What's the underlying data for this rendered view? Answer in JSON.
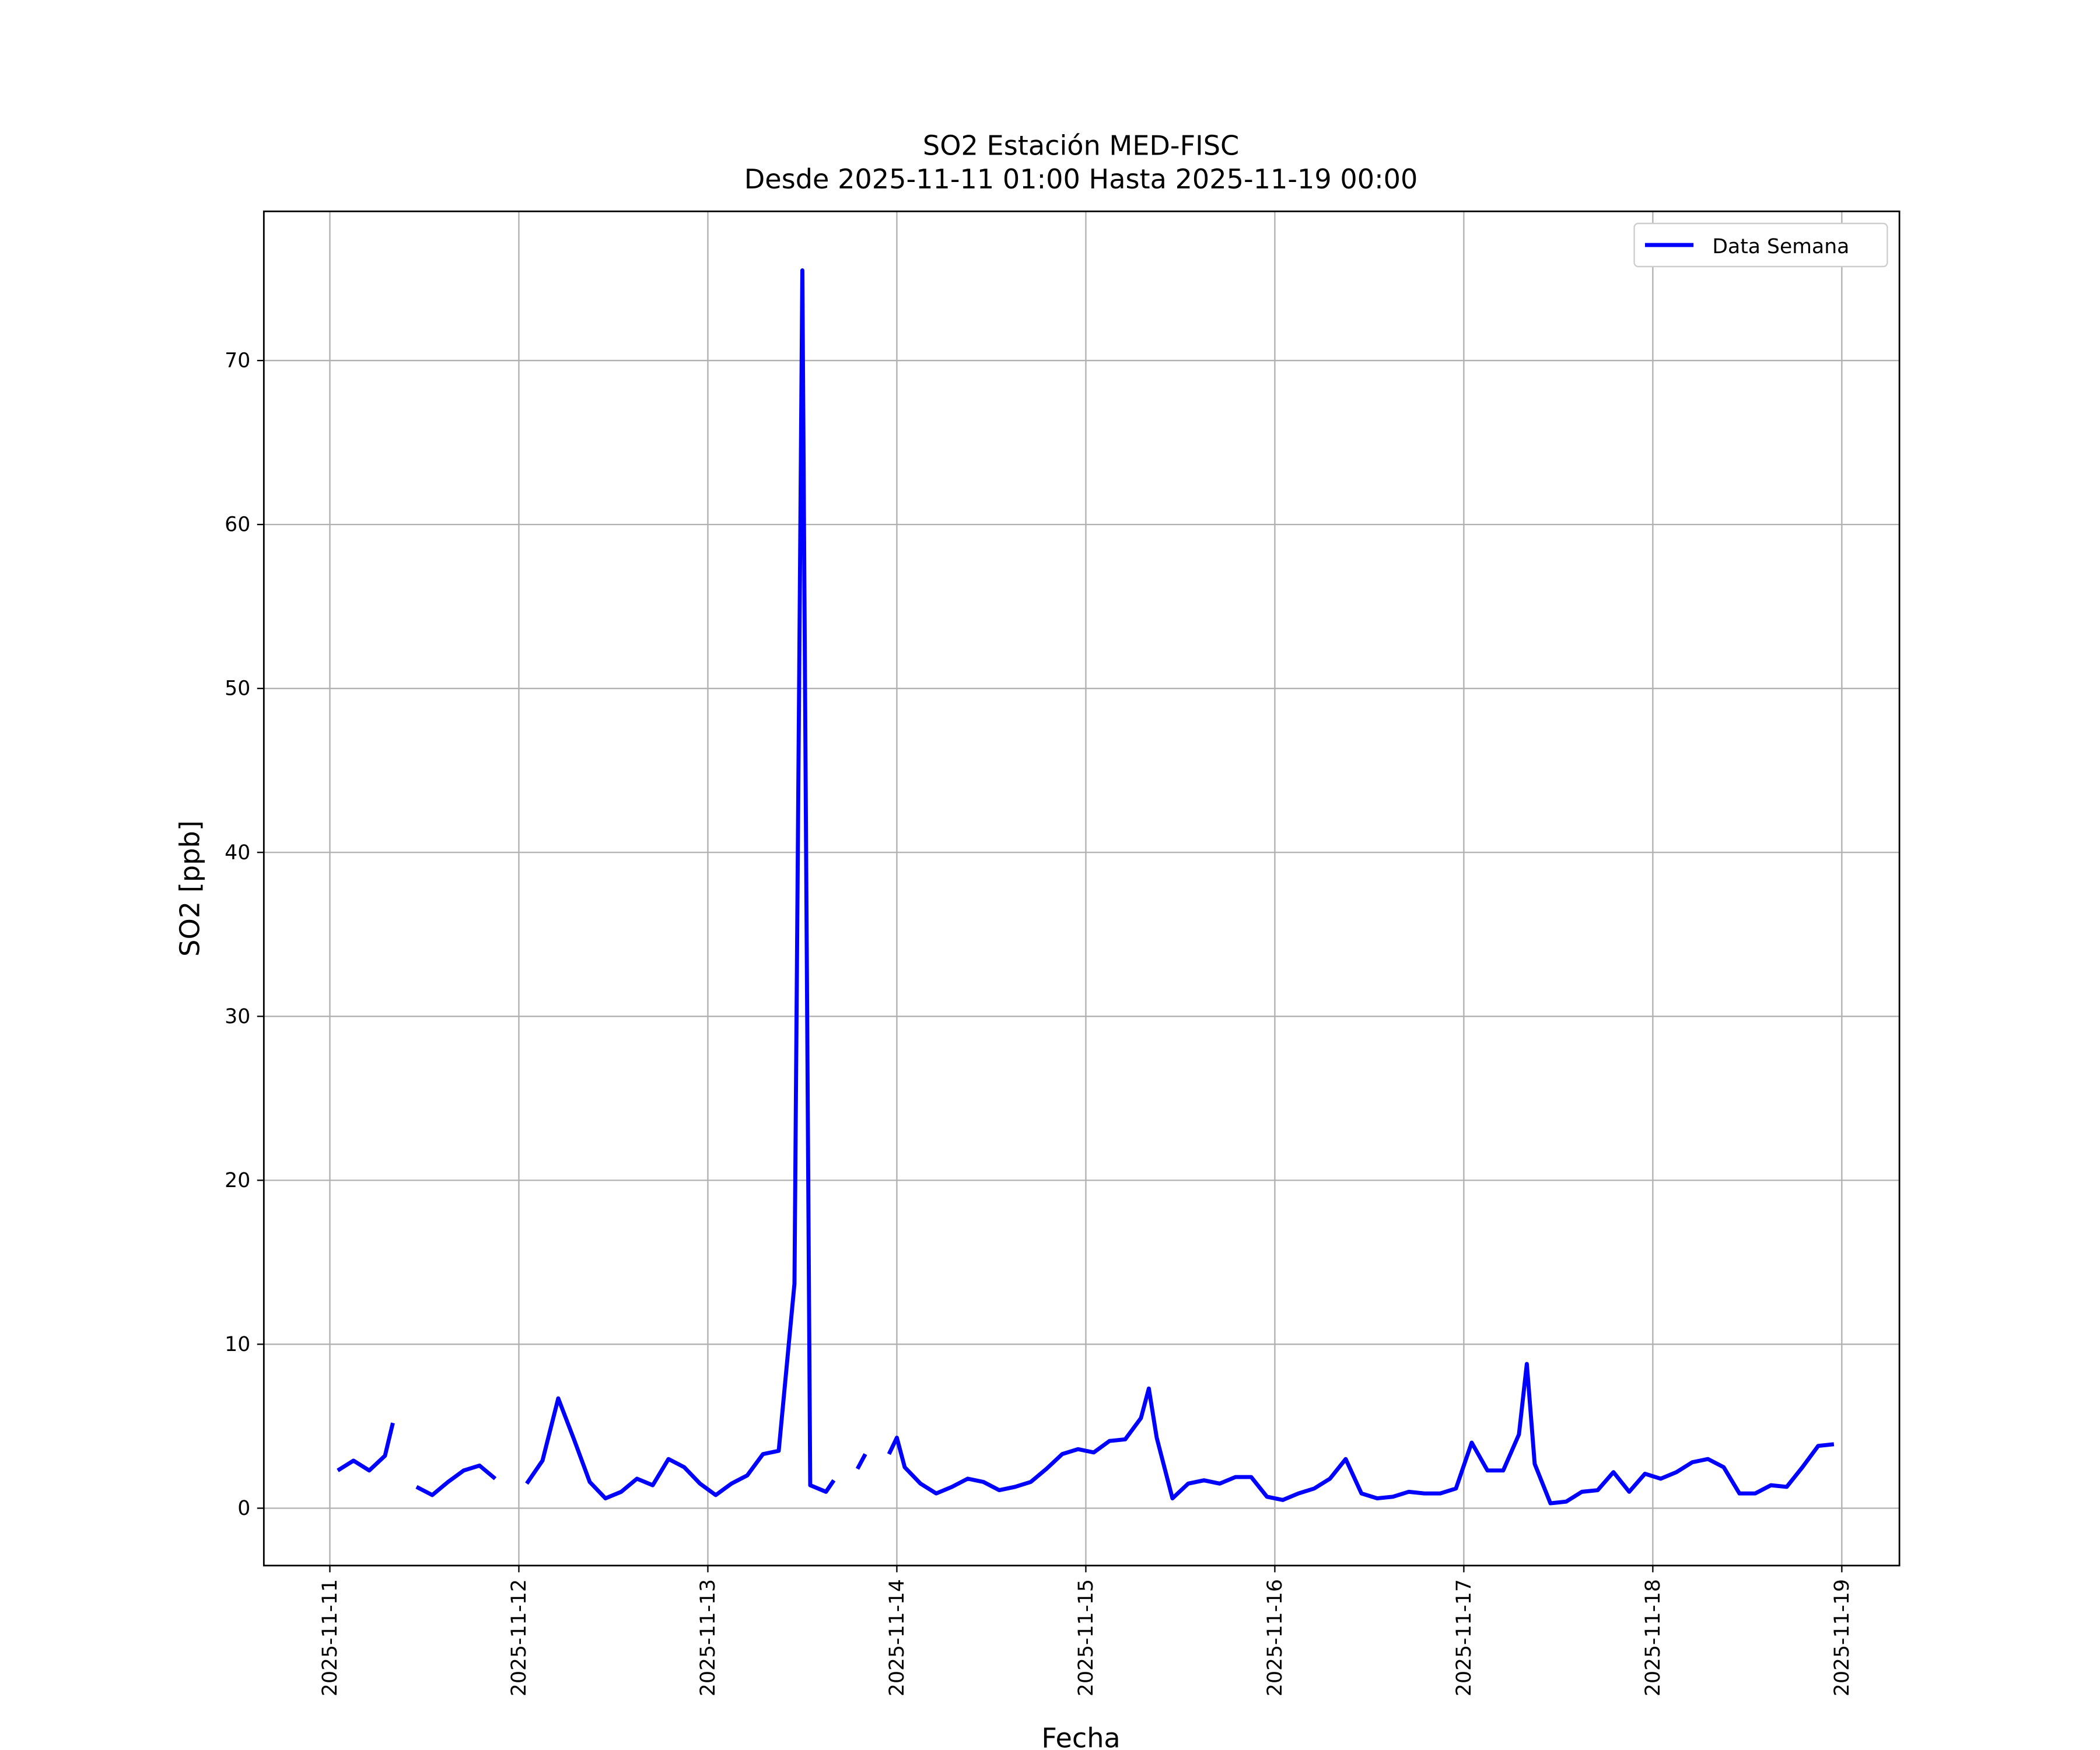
{
  "chart_data": {
    "type": "line",
    "title": "SO2 Estación MED-FISC",
    "subtitle": "Desde 2025-11-11 01:00 Hasta 2025-11-19 00:00",
    "x_label": "Fecha",
    "y_label": "SO2 [ppb]",
    "legend_position": "upper right",
    "grid": true,
    "xlim": [
      "2025-11-10 15:37",
      "2025-11-19 07:19"
    ],
    "xticks": [
      "2025-11-11",
      "2025-11-12",
      "2025-11-13",
      "2025-11-14",
      "2025-11-15",
      "2025-11-16",
      "2025-11-17",
      "2025-11-18",
      "2025-11-19"
    ],
    "ylim": [
      -3.5,
      79.1
    ],
    "yticks": [
      0,
      10,
      20,
      30,
      40,
      50,
      60,
      70
    ],
    "x": [
      "2025-11-11 01:00",
      "2025-11-11 03:00",
      "2025-11-11 05:00",
      "2025-11-11 07:00",
      "2025-11-11 08:00",
      "2025-11-11 09:00",
      "2025-11-11 11:00",
      "2025-11-11 13:00",
      "2025-11-11 15:00",
      "2025-11-11 17:00",
      "2025-11-11 19:00",
      "2025-11-11 21:00",
      "2025-11-11 23:00",
      "2025-11-12 01:00",
      "2025-11-12 03:00",
      "2025-11-12 05:00",
      "2025-11-12 07:00",
      "2025-11-12 09:00",
      "2025-11-12 11:00",
      "2025-11-12 13:00",
      "2025-11-12 15:00",
      "2025-11-12 17:00",
      "2025-11-12 19:00",
      "2025-11-12 21:00",
      "2025-11-12 23:00",
      "2025-11-13 01:00",
      "2025-11-13 03:00",
      "2025-11-13 05:00",
      "2025-11-13 07:00",
      "2025-11-13 09:00",
      "2025-11-13 11:00",
      "2025-11-13 12:00",
      "2025-11-13 13:00",
      "2025-11-13 15:00",
      "2025-11-13 16:00",
      "2025-11-13 17:00",
      "2025-11-13 19:00",
      "2025-11-13 20:00",
      "2025-11-13 21:00",
      "2025-11-13 23:00",
      "2025-11-14 00:00",
      "2025-11-14 01:00",
      "2025-11-14 03:00",
      "2025-11-14 05:00",
      "2025-11-14 07:00",
      "2025-11-14 09:00",
      "2025-11-14 11:00",
      "2025-11-14 13:00",
      "2025-11-14 15:00",
      "2025-11-14 17:00",
      "2025-11-14 19:00",
      "2025-11-14 21:00",
      "2025-11-14 23:00",
      "2025-11-15 01:00",
      "2025-11-15 03:00",
      "2025-11-15 05:00",
      "2025-11-15 07:00",
      "2025-11-15 08:00",
      "2025-11-15 09:00",
      "2025-11-15 11:00",
      "2025-11-15 13:00",
      "2025-11-15 15:00",
      "2025-11-15 17:00",
      "2025-11-15 19:00",
      "2025-11-15 21:00",
      "2025-11-15 23:00",
      "2025-11-16 01:00",
      "2025-11-16 03:00",
      "2025-11-16 05:00",
      "2025-11-16 07:00",
      "2025-11-16 09:00",
      "2025-11-16 11:00",
      "2025-11-16 13:00",
      "2025-11-16 15:00",
      "2025-11-16 17:00",
      "2025-11-16 19:00",
      "2025-11-16 21:00",
      "2025-11-16 23:00",
      "2025-11-17 01:00",
      "2025-11-17 03:00",
      "2025-11-17 05:00",
      "2025-11-17 07:00",
      "2025-11-17 08:00",
      "2025-11-17 09:00",
      "2025-11-17 11:00",
      "2025-11-17 13:00",
      "2025-11-17 15:00",
      "2025-11-17 17:00",
      "2025-11-17 19:00",
      "2025-11-17 21:00",
      "2025-11-17 23:00",
      "2025-11-18 01:00",
      "2025-11-18 03:00",
      "2025-11-18 05:00",
      "2025-11-18 07:00",
      "2025-11-18 09:00",
      "2025-11-18 11:00",
      "2025-11-18 13:00",
      "2025-11-18 15:00",
      "2025-11-18 17:00",
      "2025-11-18 19:00",
      "2025-11-18 21:00",
      "2025-11-18 23:00"
    ],
    "series": [
      {
        "name": "Data Semana",
        "color": "#0000ff",
        "values": [
          2.3,
          2.9,
          2.3,
          3.2,
          5.2,
          null,
          1.3,
          0.8,
          1.6,
          2.3,
          2.6,
          1.8,
          null,
          1.5,
          2.9,
          6.7,
          4.2,
          1.6,
          0.6,
          1.0,
          1.8,
          1.4,
          3.0,
          2.5,
          1.5,
          0.8,
          1.5,
          2.0,
          3.3,
          3.5,
          13.7,
          75.5,
          1.4,
          1.0,
          1.7,
          null,
          2.4,
          3.3,
          null,
          3.3,
          4.3,
          2.5,
          1.5,
          0.9,
          1.3,
          1.8,
          1.6,
          1.1,
          1.3,
          1.6,
          2.4,
          3.3,
          3.6,
          3.4,
          4.1,
          4.2,
          5.5,
          7.3,
          4.3,
          0.6,
          1.5,
          1.7,
          1.5,
          1.9,
          1.9,
          0.7,
          0.5,
          0.9,
          1.2,
          1.8,
          3.0,
          0.9,
          0.6,
          0.7,
          1.0,
          0.9,
          0.9,
          1.2,
          4.0,
          2.3,
          2.3,
          4.5,
          8.8,
          2.7,
          0.3,
          0.4,
          1.0,
          1.1,
          2.2,
          1.0,
          2.1,
          1.8,
          2.2,
          2.8,
          3.0,
          2.5,
          0.9,
          0.9,
          1.4,
          1.3,
          2.5,
          3.8,
          3.9
        ]
      }
    ]
  }
}
